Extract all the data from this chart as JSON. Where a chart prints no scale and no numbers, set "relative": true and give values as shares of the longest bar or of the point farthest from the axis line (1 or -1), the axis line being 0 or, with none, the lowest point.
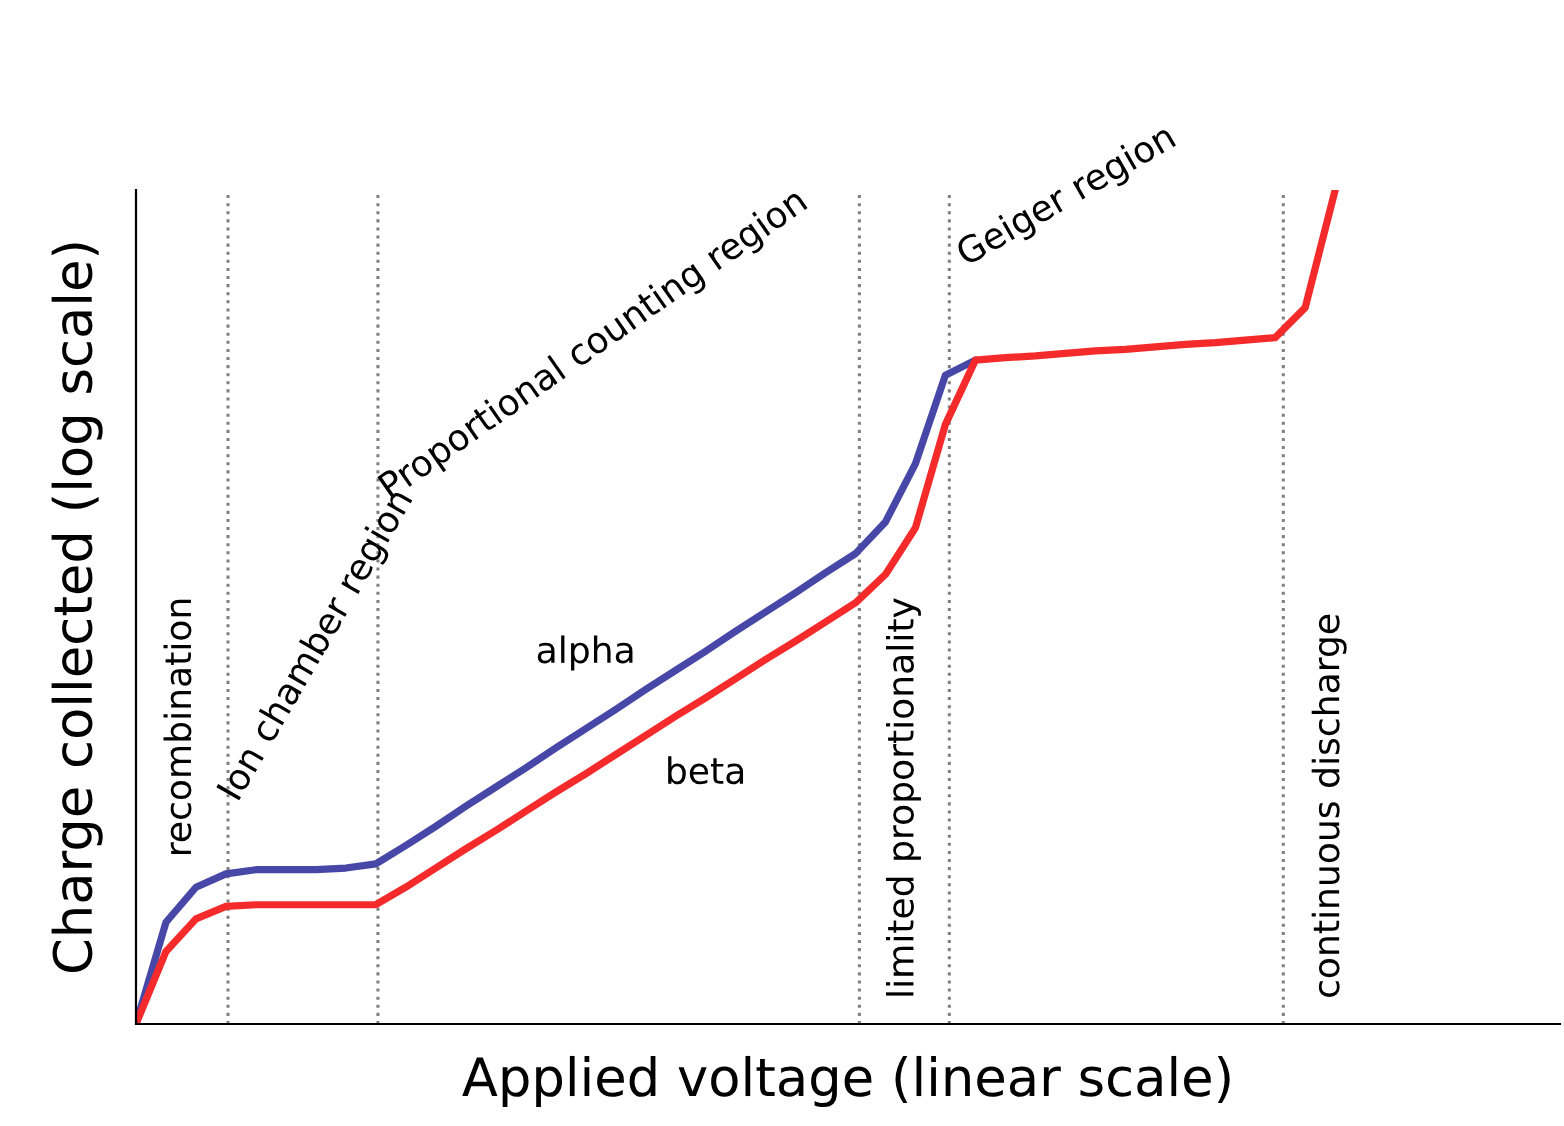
{
  "chart_data": {
    "type": "line",
    "relative": true,
    "xlabel": "Applied voltage (linear scale)",
    "ylabel": "Charge collected (log scale)",
    "categories": [
      null,
      null,
      null,
      null,
      null,
      null,
      null,
      null,
      null,
      null,
      null,
      null,
      null,
      null,
      null,
      null,
      null,
      null,
      null,
      null,
      null,
      null,
      null,
      null,
      null,
      null,
      null,
      null,
      null,
      null,
      null,
      null,
      null,
      null,
      null,
      null,
      null,
      null,
      null,
      null,
      null
    ],
    "series": [
      {
        "name": "alpha",
        "color": "#4747a8",
        "values": [
          0,
          0.122,
          0.164,
          0.18,
          0.185,
          0.185,
          0.185,
          0.187,
          0.192,
          0.214,
          0.237,
          0.261,
          0.284,
          0.307,
          0.331,
          0.354,
          0.377,
          0.401,
          0.424,
          0.447,
          0.471,
          0.494,
          0.517,
          0.541,
          0.564,
          0.602,
          0.672,
          0.778,
          0.796,
          null,
          null,
          null,
          null,
          null,
          null,
          null,
          null,
          null,
          null,
          null,
          null
        ]
      },
      {
        "name": "beta",
        "color": "#f52a2a",
        "values": [
          0,
          0.087,
          0.126,
          0.141,
          0.143,
          0.143,
          0.143,
          0.143,
          0.143,
          0.164,
          0.187,
          0.21,
          0.232,
          0.255,
          0.278,
          0.3,
          0.323,
          0.346,
          0.369,
          0.391,
          0.414,
          0.437,
          0.459,
          0.482,
          0.505,
          0.539,
          0.595,
          0.719,
          0.796,
          0.799,
          0.801,
          0.804,
          0.807,
          0.809,
          0.812,
          0.815,
          0.817,
          0.82,
          0.823,
          0.859,
          1.0
        ]
      }
    ],
    "annotations": [
      "recombination",
      "Ion chamber region",
      "Proportional counting region",
      "limited proportionality",
      "Geiger region",
      "continuous discharge"
    ],
    "grid": "x",
    "legend": false,
    "marker": "none",
    "line_style": "solid"
  }
}
